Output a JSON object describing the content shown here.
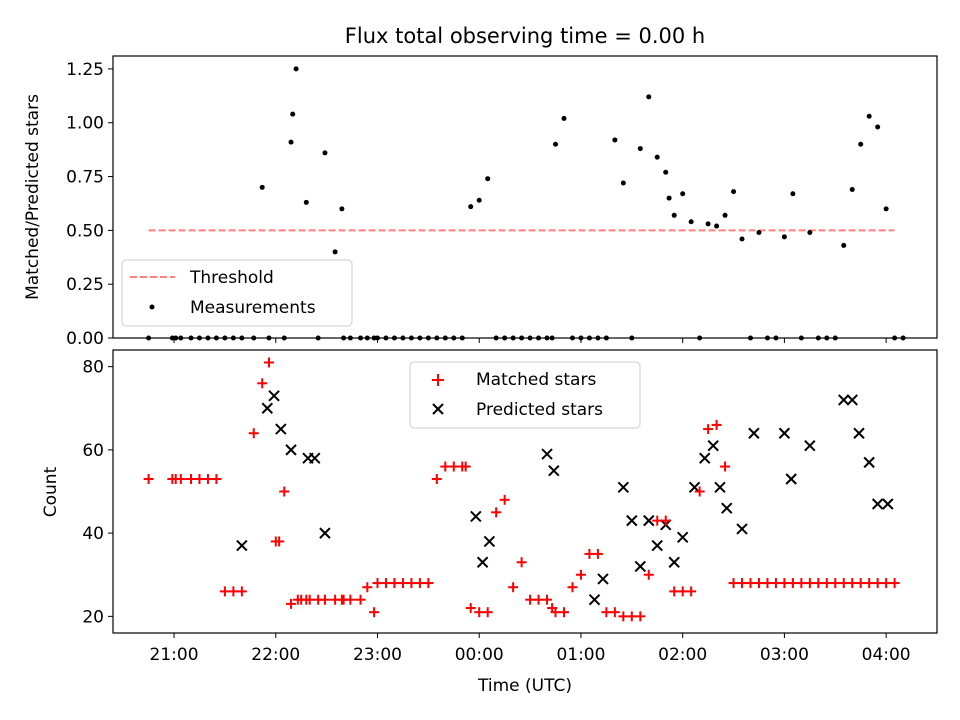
{
  "figure": {
    "title": "Flux total observing time = 0.00 h"
  },
  "chart_data": [
    {
      "type": "scatter",
      "title": "Flux total observing time = 0.00 h",
      "ylabel": "Matched/Predicted stars",
      "xlabel": "",
      "xlim": [
        "20:24",
        "04:30"
      ],
      "ylim": [
        0,
        1.31
      ],
      "yticks": [
        "0.00",
        "0.25",
        "0.50",
        "0.75",
        "1.00",
        "1.25"
      ],
      "grid": false,
      "legend_position": "lower-left",
      "threshold": {
        "name": "Threshold",
        "value": 0.5,
        "x_start": "20:45",
        "x_end": "04:05",
        "color": "#ff8080"
      },
      "series": [
        {
          "name": "Measurements",
          "color": "#000000",
          "x": [
            "20:45",
            "20:59",
            "21:01",
            "21:04",
            "21:10",
            "21:15",
            "21:20",
            "21:25",
            "21:30",
            "21:35",
            "21:40",
            "21:47",
            "21:52",
            "21:56",
            "22:05",
            "22:09",
            "22:10",
            "22:12",
            "22:18",
            "22:25",
            "22:29",
            "22:35",
            "22:39",
            "22:40",
            "22:44",
            "22:50",
            "22:54",
            "22:58",
            "23:00",
            "23:05",
            "23:10",
            "23:15",
            "23:20",
            "23:25",
            "23:30",
            "23:35",
            "23:40",
            "23:45",
            "23:50",
            "23:55",
            "00:00",
            "00:05",
            "00:10",
            "00:15",
            "00:20",
            "00:25",
            "00:30",
            "00:35",
            "00:40",
            "00:43",
            "00:45",
            "00:50",
            "00:55",
            "01:00",
            "01:05",
            "01:10",
            "01:15",
            "01:20",
            "01:25",
            "01:30",
            "01:35",
            "01:40",
            "01:45",
            "01:50",
            "01:52",
            "01:55",
            "02:00",
            "02:05",
            "02:10",
            "02:15",
            "02:20",
            "02:25",
            "02:30",
            "02:35",
            "02:40",
            "02:45",
            "02:50",
            "02:55",
            "03:00",
            "03:05",
            "03:10",
            "03:15",
            "03:20",
            "03:25",
            "03:30",
            "03:35",
            "03:40",
            "03:45",
            "03:50",
            "03:55",
            "04:00",
            "04:05",
            "04:10"
          ],
          "y": [
            0,
            0,
            0,
            0,
            0,
            0,
            0,
            0,
            0,
            0,
            0,
            0,
            0.7,
            0,
            0,
            0.91,
            1.04,
            1.25,
            0.63,
            0,
            0.86,
            0.4,
            0.6,
            0,
            0,
            0,
            0,
            0,
            0,
            0,
            0,
            0,
            0,
            0,
            0,
            0,
            0,
            0,
            0,
            0.61,
            0.64,
            0.74,
            0,
            0,
            0,
            0,
            0,
            0,
            0,
            0,
            0.9,
            1.02,
            0,
            0,
            0,
            0,
            0,
            0.92,
            0.72,
            0,
            0.88,
            1.12,
            0.84,
            0.77,
            0.65,
            0.57,
            0.67,
            0.54,
            0,
            0.53,
            0.52,
            0.57,
            0.68,
            0.46,
            0,
            0.49,
            0,
            0,
            0.47,
            0.67,
            0,
            0.49,
            0,
            0,
            0,
            0.43,
            0.69,
            0.9,
            1.03,
            0.98,
            0.6,
            0,
            0
          ],
          "_comment_ignore": ""
        }
      ]
    },
    {
      "type": "scatter",
      "title": "",
      "xlabel": "Time (UTC)",
      "ylabel": "Count",
      "xlim": [
        "20:24",
        "04:30"
      ],
      "ylim": [
        16,
        84
      ],
      "xticks": [
        "21:00",
        "22:00",
        "23:00",
        "00:00",
        "01:00",
        "02:00",
        "03:00",
        "04:00"
      ],
      "yticks": [
        "20",
        "40",
        "60",
        "80"
      ],
      "grid": false,
      "legend_position": "top-center",
      "series": [
        {
          "name": "Matched stars",
          "marker": "+",
          "color": "#ff0000",
          "x": [
            "20:45",
            "20:59",
            "21:01",
            "21:04",
            "21:10",
            "21:15",
            "21:20",
            "21:25",
            "21:30",
            "21:35",
            "21:40",
            "21:47",
            "21:52",
            "21:56",
            "22:00",
            "22:02",
            "22:05",
            "22:09",
            "22:13",
            "22:15",
            "22:18",
            "22:20",
            "22:25",
            "22:29",
            "22:35",
            "22:39",
            "22:40",
            "22:44",
            "22:50",
            "22:54",
            "22:58",
            "23:00",
            "23:05",
            "23:10",
            "23:15",
            "23:20",
            "23:25",
            "23:30",
            "23:35",
            "23:40",
            "23:45",
            "23:50",
            "23:52",
            "23:55",
            "00:00",
            "00:05",
            "00:10",
            "00:15",
            "00:20",
            "00:25",
            "00:30",
            "00:35",
            "00:40",
            "00:43",
            "00:45",
            "00:50",
            "00:55",
            "01:00",
            "01:05",
            "01:10",
            "01:15",
            "01:20",
            "01:25",
            "01:30",
            "01:35",
            "01:40",
            "01:45",
            "01:50",
            "01:55",
            "02:00",
            "02:05",
            "02:10",
            "02:15",
            "02:20",
            "02:25",
            "02:30",
            "02:35",
            "02:40",
            "02:45",
            "02:50",
            "02:55",
            "03:00",
            "03:05",
            "03:10",
            "03:15",
            "03:20",
            "03:25",
            "03:30",
            "03:35",
            "03:40",
            "03:45",
            "03:50",
            "03:55",
            "04:00",
            "04:05"
          ],
          "y": [
            53,
            53,
            53,
            53,
            53,
            53,
            53,
            53,
            26,
            26,
            26,
            64,
            76,
            81,
            38,
            38,
            50,
            23,
            24,
            24,
            24,
            24,
            24,
            24,
            24,
            24,
            24,
            24,
            24,
            27,
            21,
            28,
            28,
            28,
            28,
            28,
            28,
            28,
            53,
            56,
            56,
            56,
            56,
            22,
            21,
            21,
            45,
            48,
            27,
            33,
            24,
            24,
            24,
            22,
            21,
            21,
            27,
            30,
            35,
            35,
            21,
            21,
            20,
            20,
            20,
            30,
            43,
            43,
            26,
            26,
            26,
            50,
            65,
            66,
            56,
            28,
            28,
            28,
            28,
            28,
            28,
            28,
            28,
            28,
            28,
            28,
            28,
            28,
            28,
            28,
            28,
            28,
            28,
            28,
            28
          ],
          "_comment_ignore": ""
        },
        {
          "name": "Predicted stars",
          "marker": "x",
          "color": "#000000",
          "x": [
            "21:40",
            "21:55",
            "21:59",
            "22:03",
            "22:09",
            "22:19",
            "22:23",
            "22:29",
            "23:58",
            "00:02",
            "00:06",
            "00:40",
            "00:44",
            "01:08",
            "01:13",
            "01:25",
            "01:30",
            "01:35",
            "01:40",
            "01:45",
            "01:50",
            "01:55",
            "02:00",
            "02:07",
            "02:13",
            "02:18",
            "02:22",
            "02:26",
            "02:35",
            "02:42",
            "03:00",
            "03:04",
            "03:15",
            "03:35",
            "03:40",
            "03:44",
            "03:50",
            "03:55",
            "04:01"
          ],
          "y": [
            37,
            70,
            73,
            65,
            60,
            58,
            58,
            40,
            44,
            33,
            38,
            59,
            55,
            24,
            29,
            51,
            43,
            32,
            43,
            37,
            42,
            33,
            39,
            51,
            58,
            61,
            51,
            46,
            41,
            64,
            64,
            53,
            61,
            72,
            72,
            64,
            57,
            47,
            47
          ],
          "_comment_ignore": ""
        }
      ]
    }
  ]
}
